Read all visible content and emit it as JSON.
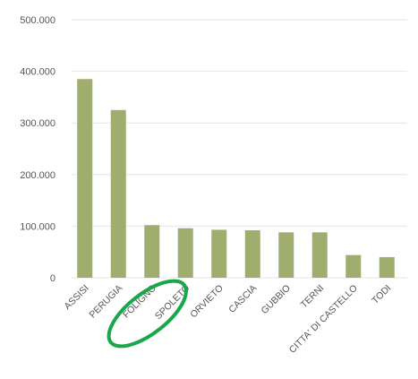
{
  "chart_data": {
    "type": "bar",
    "title": "",
    "xlabel": "",
    "ylabel": "",
    "categories": [
      "ASSISI",
      "PERUGIA",
      "FOLIGNO",
      "SPOLETO",
      "ORVIETO",
      "CASCIA",
      "GUBBIO",
      "TERNI",
      "CITTA' DI CASTELLO",
      "TODI"
    ],
    "values": [
      385000,
      325000,
      102000,
      96000,
      93000,
      92000,
      88000,
      88000,
      44000,
      40000
    ],
    "ylim": [
      0,
      500000
    ],
    "yticks": [
      0,
      100000,
      200000,
      300000,
      400000,
      500000
    ],
    "ytick_labels": [
      "0",
      "100.000",
      "200.000",
      "300.000",
      "400.000",
      "500.000"
    ],
    "grid": true,
    "bar_color": "#9fae6e",
    "grid_color": "#e6e6e6",
    "annotation": {
      "type": "ellipse",
      "target": "FOLIGNO",
      "color": "#1aa64a"
    }
  }
}
